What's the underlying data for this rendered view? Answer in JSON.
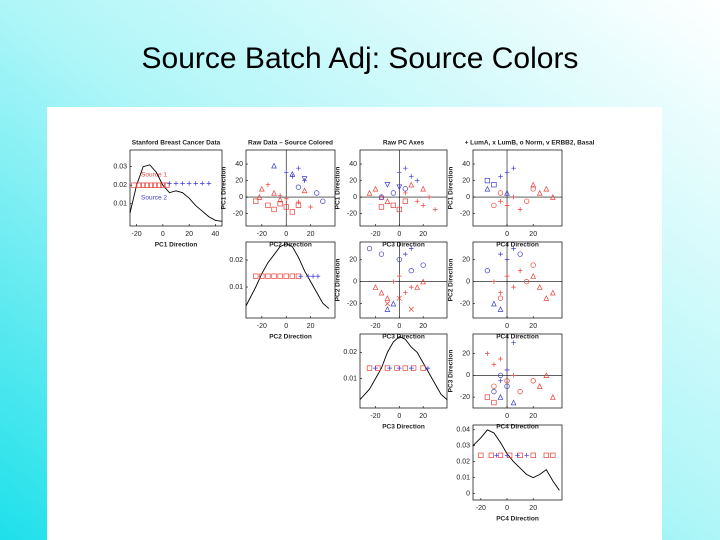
{
  "title": "Source Batch Adj:  Source Colors",
  "chart_data": [
    {
      "type": "density",
      "title": "Stanford Breast Cancer Data",
      "xlabel": "PC1 Direction",
      "xlim": [
        -25,
        45
      ],
      "ylim": [
        -0.002,
        0.039
      ],
      "xticks": [
        -20,
        0,
        20,
        40
      ],
      "yticks": [
        0.01,
        0.02,
        0.03
      ],
      "annotations": [
        {
          "text": "Source 1",
          "color": "#e8413a"
        },
        {
          "text": "Source 2",
          "color": "#3b3bd0"
        }
      ],
      "series": [
        {
          "marker": "line",
          "color": "#000000",
          "x": [
            -25,
            -20,
            -15,
            -10,
            -5,
            0,
            5,
            10,
            15,
            20,
            25,
            30,
            35,
            40,
            45
          ],
          "values": [
            0.005,
            0.02,
            0.03,
            0.031,
            0.027,
            0.02,
            0.016,
            0.017,
            0.016,
            0.013,
            0.009,
            0.006,
            0.003,
            0.001,
            0.0005
          ]
        },
        {
          "marker": "square",
          "color": "#e8413a",
          "x": [
            -22,
            -18,
            -15,
            -12,
            -9,
            -6,
            -3,
            0,
            3
          ],
          "values": [
            0.02,
            0.02,
            0.02,
            0.02,
            0.02,
            0.02,
            0.02,
            0.02,
            0.02
          ]
        },
        {
          "marker": "+",
          "color": "#3b3bd0",
          "x": [
            5,
            10,
            15,
            20,
            25,
            30,
            35
          ],
          "values": [
            0.021,
            0.021,
            0.021,
            0.021,
            0.021,
            0.021,
            0.021
          ]
        }
      ]
    },
    {
      "type": "scatter",
      "title": "Raw Data – Source Colored",
      "xlabel": "PC2 Direction",
      "ylabel": "PC1 Direction",
      "xlim": [
        -33,
        40
      ],
      "ylim": [
        -35,
        57
      ],
      "xticks": [
        -20,
        0,
        20
      ],
      "yticks": [
        -20,
        0,
        20,
        40
      ],
      "crosshair": true,
      "series": [
        {
          "marker": "square",
          "color": "#e8413a",
          "x": [
            -25,
            -15,
            -10,
            -5,
            0,
            5,
            10
          ],
          "values": [
            -5,
            -10,
            -15,
            -8,
            -12,
            -18,
            -10
          ]
        },
        {
          "marker": "triangle",
          "color": "#e8413a",
          "x": [
            -20,
            -22,
            -10,
            -5,
            15
          ],
          "values": [
            10,
            0,
            5,
            -3,
            8
          ]
        },
        {
          "marker": "+",
          "color": "#e8413a",
          "x": [
            -15,
            -5,
            0,
            10,
            20
          ],
          "values": [
            15,
            2,
            -2,
            -6,
            -12
          ]
        },
        {
          "marker": "+",
          "color": "#3b3bd0",
          "x": [
            0,
            5,
            10,
            15
          ],
          "values": [
            30,
            25,
            35,
            20
          ]
        },
        {
          "marker": "o",
          "color": "#3b3bd0",
          "x": [
            25,
            30,
            10
          ],
          "values": [
            5,
            -5,
            12
          ]
        },
        {
          "marker": "triangle",
          "color": "#3b3bd0",
          "x": [
            -10,
            5
          ],
          "values": [
            38,
            28
          ]
        },
        {
          "marker": "v",
          "color": "#3b3bd0",
          "x": [
            15
          ],
          "values": [
            22
          ]
        }
      ]
    },
    {
      "type": "scatter",
      "title": "Raw PC Axes",
      "xlabel": "PC3 Direction",
      "ylabel": "PC1 Direction",
      "xlim": [
        -33,
        40
      ],
      "ylim": [
        -35,
        57
      ],
      "xticks": [
        -20,
        0,
        20
      ],
      "yticks": [
        -20,
        0,
        20,
        40
      ],
      "crosshair": true,
      "series": [
        {
          "marker": "triangle",
          "color": "#e8413a",
          "x": [
            -25,
            -20,
            -15,
            -10,
            10,
            20
          ],
          "values": [
            5,
            10,
            0,
            -5,
            15,
            10
          ]
        },
        {
          "marker": "+",
          "color": "#e8413a",
          "x": [
            15,
            20,
            25,
            30,
            5
          ],
          "values": [
            -5,
            -10,
            0,
            -15,
            5
          ]
        },
        {
          "marker": "square",
          "color": "#e8413a",
          "x": [
            -5,
            0,
            5,
            -15
          ],
          "values": [
            -10,
            -15,
            -5,
            -12
          ]
        },
        {
          "marker": "+",
          "color": "#3b3bd0",
          "x": [
            5,
            10,
            15,
            0
          ],
          "values": [
            35,
            25,
            20,
            30
          ]
        },
        {
          "marker": "o",
          "color": "#3b3bd0",
          "x": [
            -15,
            -5,
            5
          ],
          "values": [
            0,
            5,
            10
          ]
        },
        {
          "marker": "v",
          "color": "#3b3bd0",
          "x": [
            -10,
            0
          ],
          "values": [
            15,
            12
          ]
        }
      ]
    },
    {
      "type": "scatter",
      "title": "+ LumA, x LumB, o Norm, v ERBB2, Basal",
      "xlabel": "PC4 Direction",
      "ylabel": "PC1 Direction",
      "xlim": [
        -26,
        42
      ],
      "ylim": [
        -35,
        57
      ],
      "xticks": [
        0,
        20
      ],
      "yticks": [
        -20,
        0,
        20,
        40
      ],
      "crosshair": true,
      "series": [
        {
          "marker": "triangle",
          "color": "#e8413a",
          "x": [
            25,
            30,
            35,
            20
          ],
          "values": [
            5,
            10,
            0,
            15
          ]
        },
        {
          "marker": "+",
          "color": "#e8413a",
          "x": [
            -5,
            0,
            5,
            10
          ],
          "values": [
            -5,
            -10,
            0,
            -15
          ]
        },
        {
          "marker": "o",
          "color": "#e8413a",
          "x": [
            -10,
            -5,
            15,
            20
          ],
          "values": [
            -10,
            5,
            -5,
            10
          ]
        },
        {
          "marker": "+",
          "color": "#3b3bd0",
          "x": [
            0,
            -5,
            5
          ],
          "values": [
            30,
            25,
            35
          ]
        },
        {
          "marker": "square",
          "color": "#3b3bd0",
          "x": [
            -15,
            -10
          ],
          "values": [
            20,
            15
          ]
        },
        {
          "marker": "triangle",
          "color": "#3b3bd0",
          "x": [
            -15,
            0
          ],
          "values": [
            10,
            5
          ]
        }
      ]
    },
    {
      "type": "density",
      "xlabel": "PC2 Direction",
      "xlim": [
        -33,
        40
      ],
      "ylim": [
        -0.0015,
        0.0267
      ],
      "xticks": [
        -20,
        0,
        20
      ],
      "yticks": [
        0.01,
        0.02
      ],
      "series": [
        {
          "marker": "line",
          "color": "#000000",
          "x": [
            -33,
            -25,
            -20,
            -15,
            -10,
            -5,
            0,
            5,
            10,
            15,
            20,
            25,
            30,
            35
          ],
          "values": [
            0.003,
            0.01,
            0.015,
            0.019,
            0.022,
            0.025,
            0.026,
            0.025,
            0.021,
            0.016,
            0.012,
            0.008,
            0.004,
            0.002
          ]
        },
        {
          "marker": "square",
          "color": "#e8413a",
          "x": [
            -25,
            -20,
            -15,
            -10,
            -5,
            0,
            5,
            10
          ],
          "values": [
            0.014,
            0.014,
            0.014,
            0.014,
            0.014,
            0.014,
            0.014,
            0.014
          ]
        },
        {
          "marker": "+",
          "color": "#3b3bd0",
          "x": [
            12,
            18,
            22,
            26
          ],
          "values": [
            0.014,
            0.014,
            0.014,
            0.014
          ]
        }
      ]
    },
    {
      "type": "scatter",
      "xlabel": "PC3 Direction",
      "ylabel": "PC2 Direction",
      "xlim": [
        -33,
        40
      ],
      "ylim": [
        -33,
        36
      ],
      "xticks": [
        -20,
        0,
        20
      ],
      "yticks": [
        -20,
        0,
        20
      ],
      "crosshair": true,
      "series": [
        {
          "marker": "triangle",
          "color": "#e8413a",
          "x": [
            -20,
            -15,
            -10,
            15,
            20
          ],
          "values": [
            -5,
            -10,
            -15,
            -5,
            0
          ]
        },
        {
          "marker": "+",
          "color": "#e8413a",
          "x": [
            0,
            5,
            10,
            -5
          ],
          "values": [
            5,
            -10,
            -5,
            0
          ]
        },
        {
          "marker": "x",
          "color": "#e8413a",
          "x": [
            -10,
            0,
            10
          ],
          "values": [
            -20,
            -15,
            -25
          ]
        },
        {
          "marker": "o",
          "color": "#3b3bd0",
          "x": [
            -25,
            -15,
            0,
            10,
            20
          ],
          "values": [
            30,
            25,
            20,
            10,
            15
          ]
        },
        {
          "marker": "+",
          "color": "#3b3bd0",
          "x": [
            5,
            10
          ],
          "values": [
            25,
            30
          ]
        },
        {
          "marker": "triangle",
          "color": "#3b3bd0",
          "x": [
            -5,
            -10
          ],
          "values": [
            -20,
            -25
          ]
        }
      ]
    },
    {
      "type": "scatter",
      "xlabel": "PC4 Direction",
      "ylabel": "PC2 Direction",
      "xlim": [
        -26,
        42
      ],
      "ylim": [
        -33,
        36
      ],
      "xticks": [
        0,
        20
      ],
      "yticks": [
        -20,
        0,
        20
      ],
      "crosshair": true,
      "series": [
        {
          "marker": "triangle",
          "color": "#e8413a",
          "x": [
            25,
            30,
            20,
            35
          ],
          "values": [
            -5,
            -15,
            5,
            -10
          ]
        },
        {
          "marker": "+",
          "color": "#e8413a",
          "x": [
            -10,
            -5,
            0,
            5,
            10
          ],
          "values": [
            0,
            -10,
            5,
            -5,
            10
          ]
        },
        {
          "marker": "o",
          "color": "#e8413a",
          "x": [
            -5,
            15,
            20
          ],
          "values": [
            -15,
            0,
            15
          ]
        },
        {
          "marker": "+",
          "color": "#3b3bd0",
          "x": [
            -5,
            0,
            5
          ],
          "values": [
            25,
            20,
            30
          ]
        },
        {
          "marker": "o",
          "color": "#3b3bd0",
          "x": [
            -15,
            10
          ],
          "values": [
            10,
            25
          ]
        },
        {
          "marker": "triangle",
          "color": "#3b3bd0",
          "x": [
            -10,
            -5
          ],
          "values": [
            -20,
            -25
          ]
        }
      ]
    },
    {
      "type": "density",
      "xlabel": "PC3 Direction",
      "xlim": [
        -33,
        40
      ],
      "ylim": [
        -0.0012,
        0.027
      ],
      "xticks": [
        -20,
        0,
        20
      ],
      "yticks": [
        0.01,
        0.02
      ],
      "series": [
        {
          "marker": "line",
          "color": "#000000",
          "x": [
            -33,
            -25,
            -20,
            -15,
            -10,
            -5,
            0,
            5,
            10,
            15,
            20,
            25,
            30,
            35,
            40
          ],
          "values": [
            0.002,
            0.006,
            0.01,
            0.014,
            0.02,
            0.024,
            0.026,
            0.025,
            0.022,
            0.02,
            0.016,
            0.012,
            0.008,
            0.004,
            0.002
          ]
        },
        {
          "marker": "square",
          "color": "#e8413a",
          "x": [
            -25,
            -18,
            -10,
            -2,
            5,
            12,
            20
          ],
          "values": [
            0.014,
            0.014,
            0.014,
            0.014,
            0.014,
            0.014,
            0.014
          ]
        },
        {
          "marker": "+",
          "color": "#3b3bd0",
          "x": [
            -20,
            -8,
            0,
            10,
            24
          ],
          "values": [
            0.014,
            0.014,
            0.014,
            0.014,
            0.014
          ]
        }
      ]
    },
    {
      "type": "scatter",
      "xlabel": "PC4 Direction",
      "ylabel": "PC3 Direction",
      "xlim": [
        -26,
        42
      ],
      "ylim": [
        -30,
        38
      ],
      "xticks": [
        0,
        20
      ],
      "yticks": [
        -20,
        0,
        20
      ],
      "crosshair": true,
      "series": [
        {
          "marker": "+",
          "color": "#e8413a",
          "x": [
            -15,
            -10,
            -5,
            0,
            5
          ],
          "values": [
            20,
            10,
            15,
            5,
            0
          ]
        },
        {
          "marker": "o",
          "color": "#e8413a",
          "x": [
            -10,
            0,
            10,
            20
          ],
          "values": [
            -10,
            -5,
            -15,
            -5
          ]
        },
        {
          "marker": "triangle",
          "color": "#e8413a",
          "x": [
            25,
            30,
            35
          ],
          "values": [
            -10,
            0,
            -20
          ]
        },
        {
          "marker": "square",
          "color": "#e8413a",
          "x": [
            -15,
            -10
          ],
          "values": [
            -20,
            -25
          ]
        },
        {
          "marker": "+",
          "color": "#3b3bd0",
          "x": [
            -5,
            0,
            5
          ],
          "values": [
            -5,
            5,
            30
          ]
        },
        {
          "marker": "o",
          "color": "#3b3bd0",
          "x": [
            -10,
            0,
            -5
          ],
          "values": [
            -15,
            -10,
            0
          ]
        },
        {
          "marker": "triangle",
          "color": "#3b3bd0",
          "x": [
            -5,
            5
          ],
          "values": [
            -20,
            -25
          ]
        }
      ]
    },
    {
      "type": "density",
      "xlabel": "PC4 Direction",
      "xlim": [
        -26,
        42
      ],
      "ylim": [
        -0.004,
        0.043
      ],
      "xticks": [
        -20,
        0,
        20
      ],
      "yticks": [
        0,
        0.01,
        0.02,
        0.03,
        0.04
      ],
      "series": [
        {
          "marker": "line",
          "color": "#000000",
          "x": [
            -26,
            -20,
            -15,
            -10,
            -5,
            0,
            5,
            10,
            15,
            20,
            25,
            30,
            35,
            40
          ],
          "values": [
            0.03,
            0.035,
            0.04,
            0.038,
            0.032,
            0.025,
            0.02,
            0.016,
            0.012,
            0.01,
            0.012,
            0.015,
            0.008,
            0.002
          ]
        },
        {
          "marker": "square",
          "color": "#e8413a",
          "x": [
            -20,
            -12,
            -5,
            2,
            10,
            20,
            30,
            35
          ],
          "values": [
            0.024,
            0.024,
            0.024,
            0.024,
            0.024,
            0.024,
            0.024,
            0.024
          ]
        },
        {
          "marker": "+",
          "color": "#3b3bd0",
          "x": [
            -8,
            0,
            8,
            15
          ],
          "values": [
            0.024,
            0.024,
            0.024,
            0.024
          ]
        }
      ]
    }
  ]
}
